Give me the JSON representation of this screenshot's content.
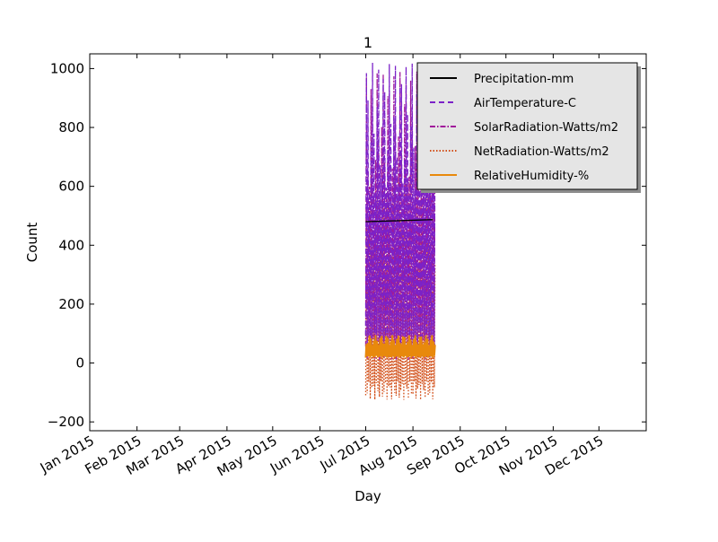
{
  "chart_data": {
    "type": "line",
    "title": "1",
    "xlabel": "Day",
    "ylabel": "Count",
    "x_range": [
      "2015-01-01",
      "2016-01-01"
    ],
    "ylim": [
      -230,
      1050
    ],
    "y_ticks": [
      -200,
      0,
      200,
      400,
      600,
      800,
      1000
    ],
    "y_tick_labels": [
      "−200",
      "0",
      "200",
      "400",
      "600",
      "800",
      "1000"
    ],
    "x_ticks": [
      "2015-01-01",
      "2015-02-01",
      "2015-03-01",
      "2015-04-01",
      "2015-05-01",
      "2015-06-01",
      "2015-07-01",
      "2015-08-01",
      "2015-09-01",
      "2015-10-01",
      "2015-11-01",
      "2015-12-01"
    ],
    "x_tick_labels": [
      "Jan 2015",
      "Feb 2015",
      "Mar 2015",
      "Apr 2015",
      "May 2015",
      "Jun 2015",
      "Jul 2015",
      "Aug 2015",
      "Sep 2015",
      "Oct 2015",
      "Nov 2015",
      "Dec 2015"
    ],
    "grid": false,
    "legend_position": "top-right",
    "data_window": [
      "2015-07-01",
      "2015-08-15"
    ],
    "series": [
      {
        "name": "Precipitation-mm",
        "color": "#000000",
        "dash": "solid",
        "data": [
          [
            "2015-07-01",
            480
          ],
          [
            "2015-07-20",
            483
          ],
          [
            "2015-08-14",
            487
          ]
        ]
      },
      {
        "name": "AirTemperature-C",
        "color": "#7b22c8",
        "dash": "dashed",
        "daily_range": [
          25,
          1020
        ]
      },
      {
        "name": "SolarRadiation-Watts/m2",
        "color": "#a0189a",
        "dash": "dashdot",
        "daily_range": [
          10,
          990
        ]
      },
      {
        "name": "NetRadiation-Watts/m2",
        "color": "#d2501a",
        "dash": "dotted",
        "daily_range": [
          -125,
          660
        ]
      },
      {
        "name": "RelativeHumidity-%",
        "color": "#e8890c",
        "dash": "solid",
        "daily_range": [
          18,
          95
        ]
      }
    ]
  }
}
